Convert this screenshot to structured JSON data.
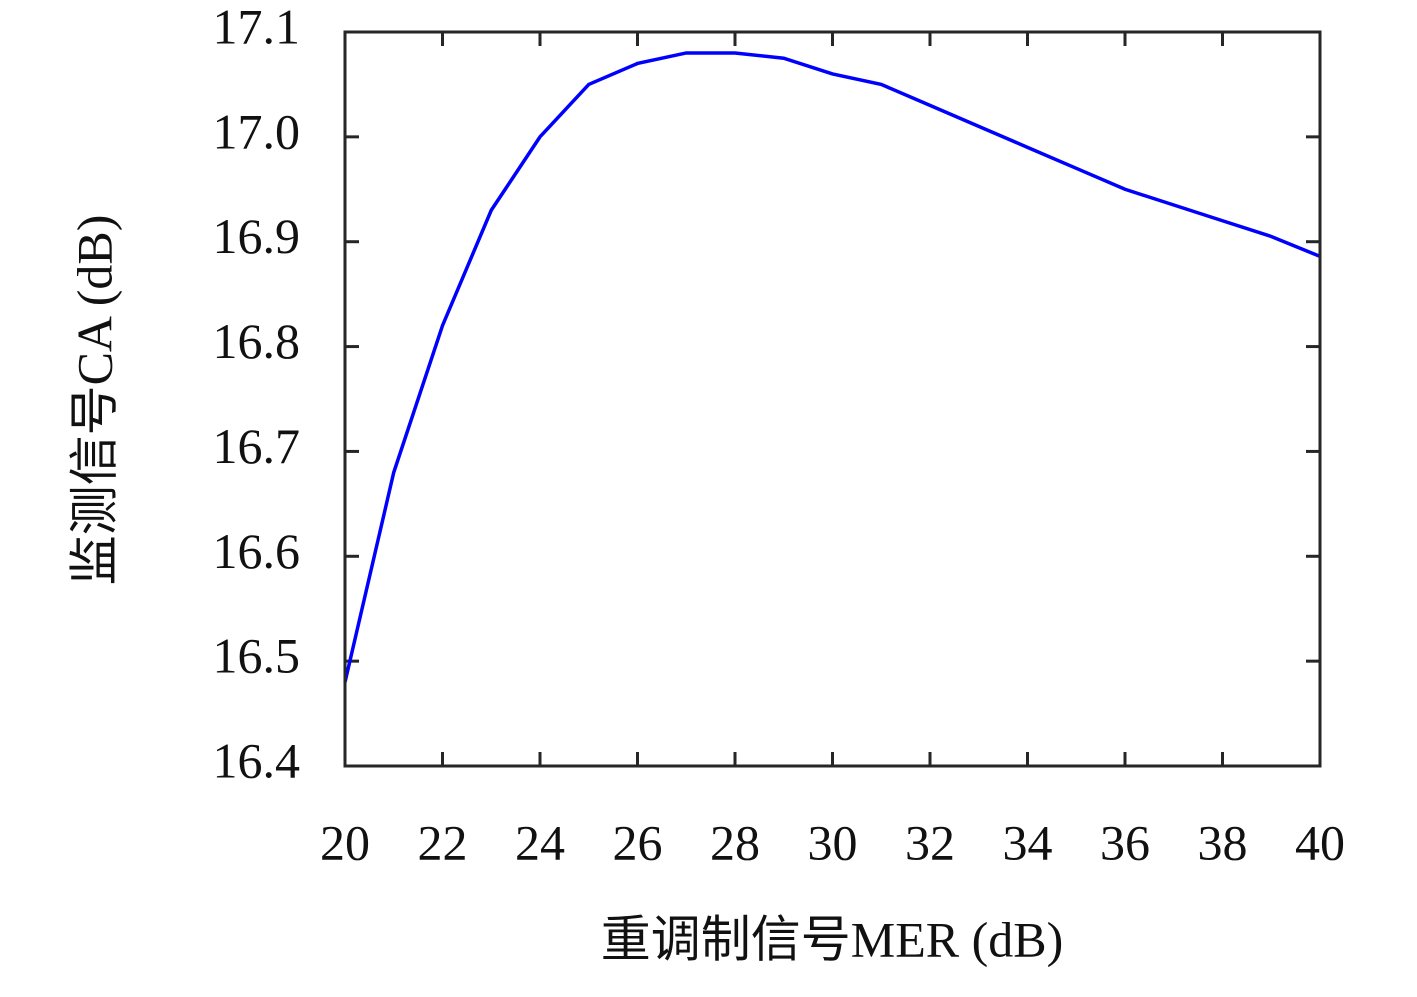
{
  "chart_data": {
    "type": "line",
    "xlabel": "重调制信号MER (dB)",
    "ylabel": "监测信号CA (dB)",
    "x": [
      20,
      21,
      22,
      23,
      24,
      25,
      26,
      27,
      28,
      29,
      30,
      31,
      32,
      33,
      34,
      35,
      36,
      37,
      38,
      39,
      40
    ],
    "series": [
      {
        "name": "CA",
        "color": "#0000ff",
        "values": [
          16.48,
          16.68,
          16.82,
          16.93,
          17.0,
          17.05,
          17.07,
          17.08,
          17.08,
          17.075,
          17.06,
          17.05,
          17.03,
          17.01,
          16.99,
          16.97,
          16.95,
          16.935,
          16.92,
          16.905,
          16.886
        ]
      }
    ],
    "xlim": [
      20,
      40
    ],
    "xticks": [
      20,
      22,
      24,
      26,
      28,
      30,
      32,
      34,
      36,
      38,
      40
    ],
    "ylim": [
      16.4,
      17.1
    ],
    "yticks": [
      16.4,
      16.5,
      16.6,
      16.7,
      16.8,
      16.9,
      {
        "value": 17,
        "label": "17.0"
      },
      17.1
    ],
    "grid": false
  }
}
